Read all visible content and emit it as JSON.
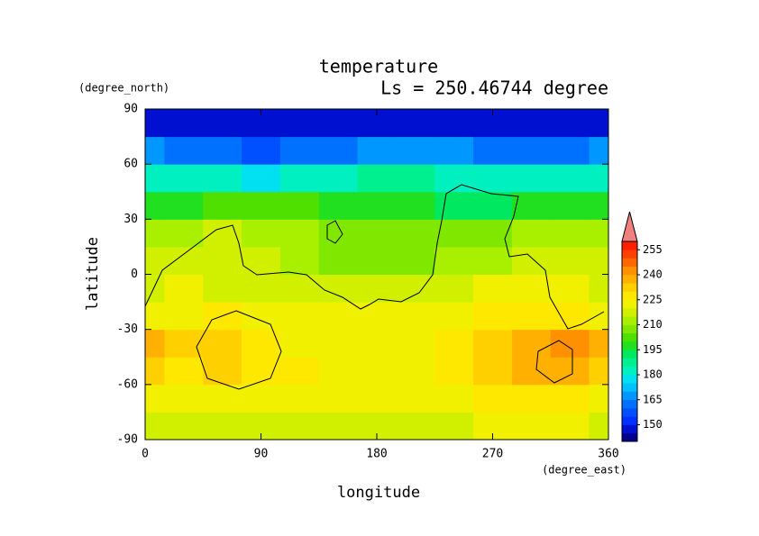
{
  "chart_data": {
    "type": "contour",
    "title": "temperature",
    "subtitle": "Ls = 250.46744 degree",
    "x_label": "longitude",
    "x_unit": "(degree_east)",
    "y_label": "latitude",
    "y_unit": "(degree_north)",
    "x": [
      0,
      30,
      60,
      90,
      120,
      150,
      180,
      210,
      240,
      270,
      300,
      330,
      360
    ],
    "y": [
      -82.5,
      -67.5,
      -52.5,
      -37.5,
      -22.5,
      -7.5,
      7.5,
      22.5,
      37.5,
      52.5,
      67.5,
      82.5
    ],
    "z": [
      [
        218,
        217,
        217,
        218,
        218,
        219,
        218,
        217,
        219,
        220,
        221,
        221,
        218
      ],
      [
        224,
        222,
        223,
        223,
        222,
        223,
        223,
        222,
        223,
        227,
        229,
        229,
        224
      ],
      [
        230,
        229,
        234,
        229,
        225,
        224,
        224,
        224,
        226,
        231,
        235,
        238,
        230
      ],
      [
        238,
        230,
        232,
        226,
        223,
        223,
        222,
        223,
        228,
        232,
        237,
        241,
        238
      ],
      [
        224,
        224,
        225,
        223,
        222,
        222,
        222,
        222,
        223,
        225,
        227,
        227,
        224
      ],
      [
        219,
        220,
        219,
        219,
        218,
        216,
        215,
        216,
        218,
        220,
        220,
        220,
        219
      ],
      [
        215,
        216,
        215,
        215,
        212,
        209,
        208,
        209,
        211,
        214,
        216,
        217,
        215
      ],
      [
        213,
        214,
        215,
        213,
        210,
        208,
        207,
        207,
        206,
        208,
        212,
        214,
        213
      ],
      [
        198,
        198,
        200,
        202,
        201,
        198,
        197,
        196,
        194,
        194,
        197,
        198,
        198
      ],
      [
        184,
        182,
        180,
        179,
        180,
        183,
        185,
        186,
        184,
        181,
        180,
        182,
        184
      ],
      [
        165,
        163,
        160,
        159,
        160,
        163,
        167,
        169,
        168,
        164,
        161,
        162,
        165
      ],
      [
        148,
        148,
        148,
        148,
        148,
        148,
        148,
        148,
        148,
        148,
        148,
        148,
        148
      ]
    ],
    "levels": [
      140,
      145,
      150,
      155,
      160,
      165,
      170,
      175,
      180,
      185,
      190,
      195,
      200,
      205,
      210,
      215,
      220,
      225,
      230,
      235,
      240,
      245,
      250,
      255,
      260
    ],
    "colors": [
      "#000090",
      "#0010d0",
      "#0030ff",
      "#0050ff",
      "#0070ff",
      "#0098ff",
      "#00c0ff",
      "#00e0f0",
      "#00f0c0",
      "#00f090",
      "#00e860",
      "#20e020",
      "#50e000",
      "#80e800",
      "#a8f000",
      "#d0f000",
      "#f0f000",
      "#ffe800",
      "#ffd000",
      "#ffb000",
      "#ff9000",
      "#ff6800",
      "#ff4000",
      "#ff2000"
    ],
    "extend_color": "#f08080",
    "colorbar_ticks": [
      150,
      165,
      180,
      195,
      210,
      225,
      240,
      255
    ],
    "xlim": [
      0,
      360
    ],
    "ylim": [
      -90,
      90
    ],
    "xticks": [
      0,
      90,
      180,
      270,
      360
    ],
    "yticks": [
      -90,
      -60,
      -30,
      0,
      30,
      60,
      90
    ]
  }
}
